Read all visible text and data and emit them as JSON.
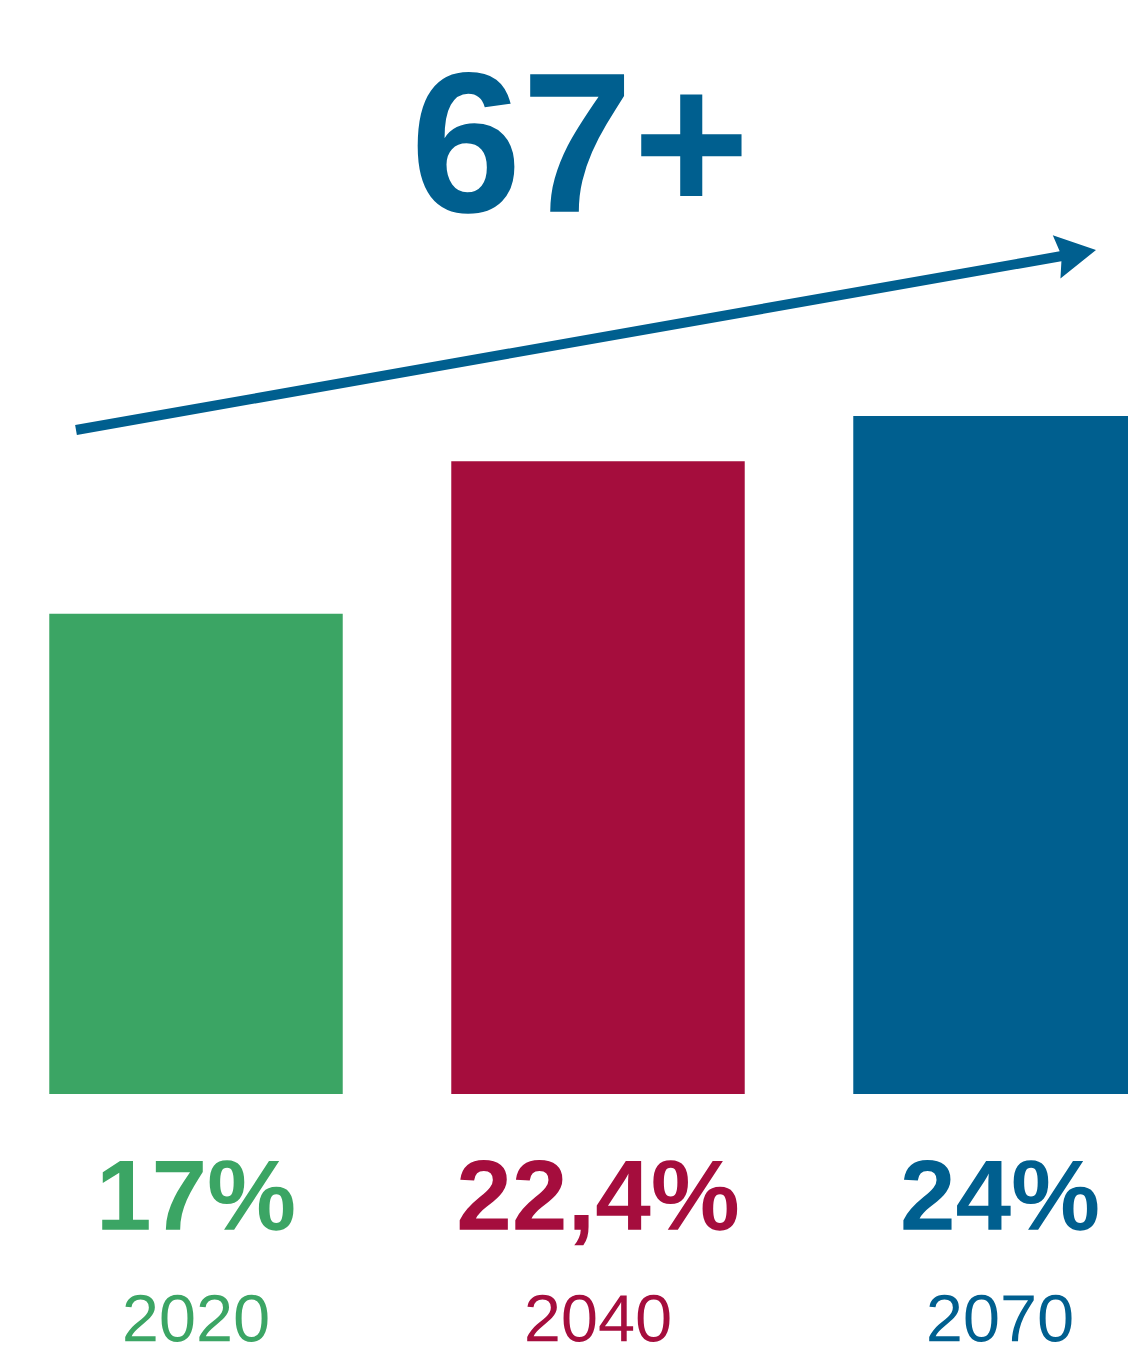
{
  "chart_data": {
    "type": "bar",
    "title": "67+",
    "categories": [
      "2020",
      "2040",
      "2070"
    ],
    "values": [
      17,
      22.4,
      24
    ],
    "value_labels": [
      "17%",
      "22,4%",
      "24%"
    ],
    "colors": [
      "#3ba564",
      "#a50d3d",
      "#005f8f"
    ]
  }
}
